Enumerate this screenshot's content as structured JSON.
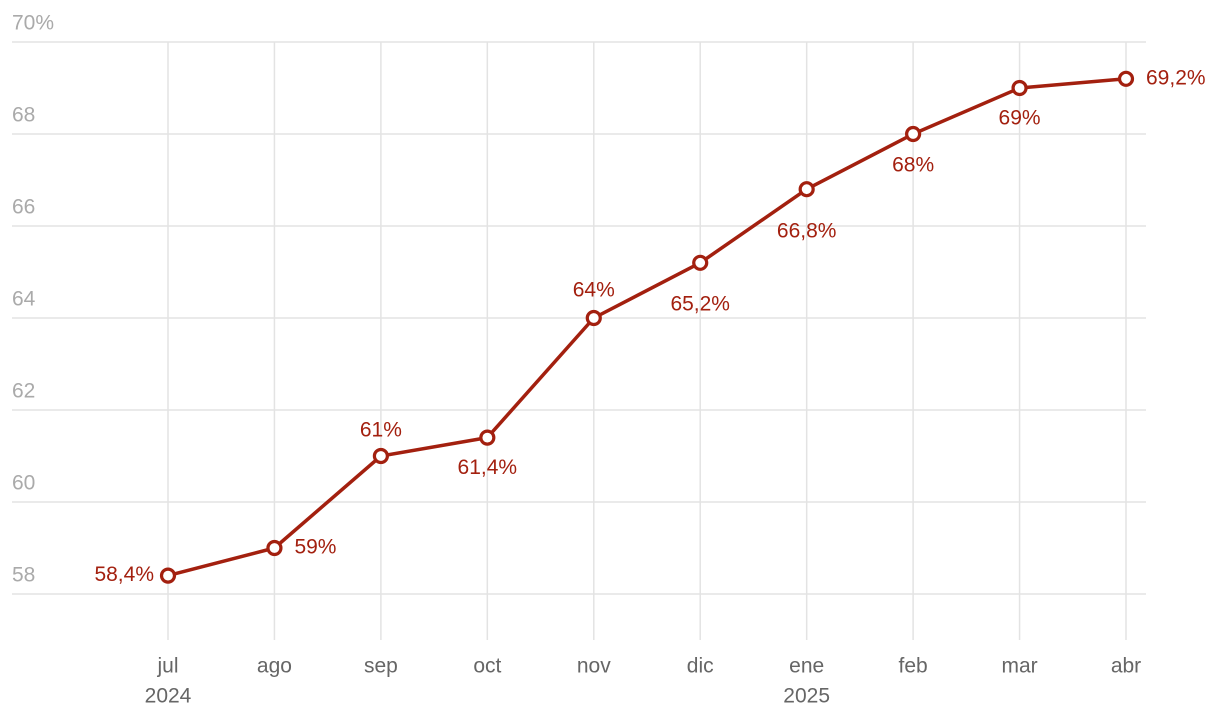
{
  "chart_data": {
    "type": "line",
    "categories": [
      "jul",
      "ago",
      "sep",
      "oct",
      "nov",
      "dic",
      "ene",
      "feb",
      "mar",
      "abr"
    ],
    "year_labels": [
      "2024",
      null,
      null,
      null,
      null,
      null,
      "2025",
      null,
      null,
      null
    ],
    "series": [
      {
        "color": "#a3200f",
        "values": [
          58.4,
          59,
          61,
          61.4,
          64,
          65.2,
          66.8,
          68,
          69,
          69.2
        ],
        "value_labels": [
          "58,4%",
          "59%",
          "61%",
          "61,4%",
          "64%",
          "65,2%",
          "66,8%",
          "68%",
          "69%",
          "69,2%"
        ]
      }
    ],
    "ylim": [
      57,
      70
    ],
    "yticks": [
      58,
      60,
      62,
      64,
      66,
      68,
      {
        "value": 70,
        "label": "70%"
      }
    ],
    "grid": true
  }
}
